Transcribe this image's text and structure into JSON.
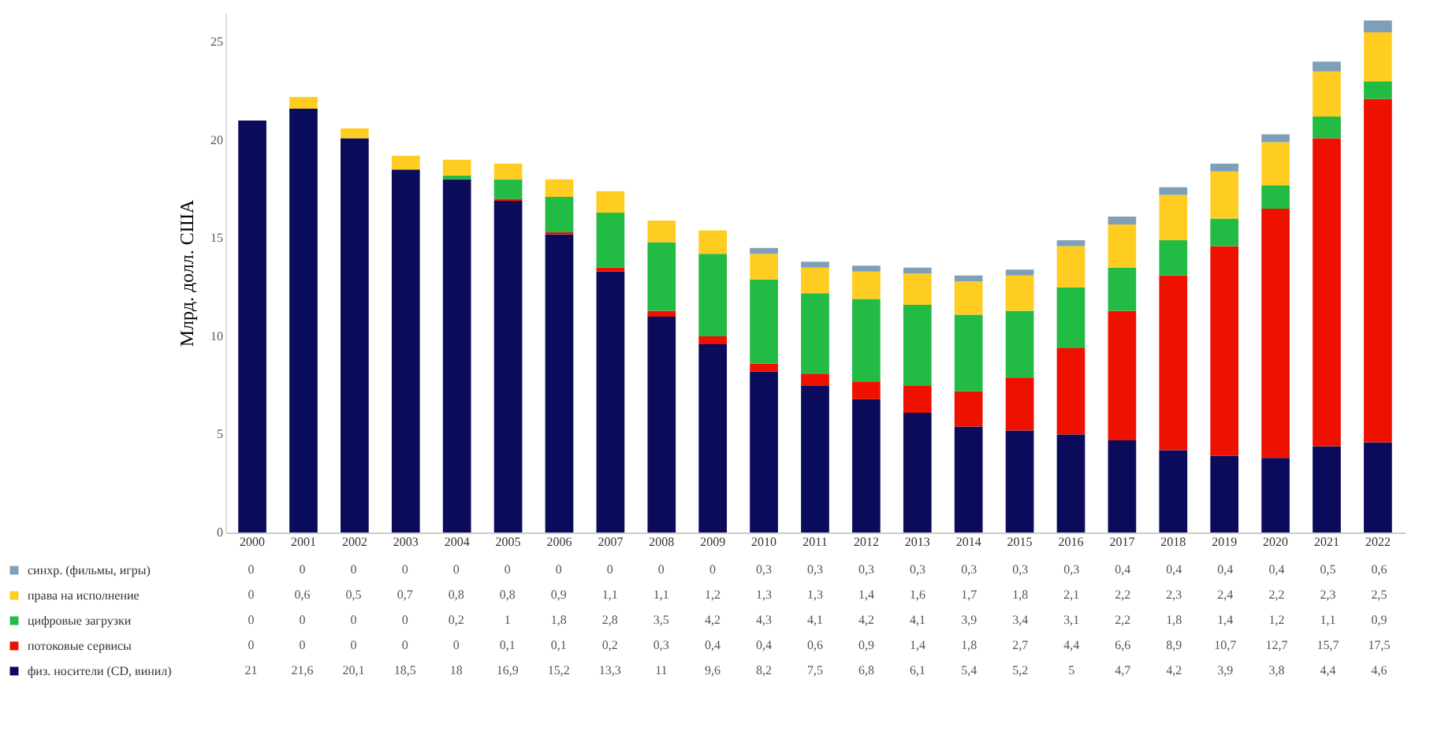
{
  "chart_data": {
    "type": "bar",
    "stacked": true,
    "ylabel": "Млрд. долл. США",
    "categories": [
      "2000",
      "2001",
      "2002",
      "2003",
      "2004",
      "2005",
      "2006",
      "2007",
      "2008",
      "2009",
      "2010",
      "2011",
      "2012",
      "2013",
      "2014",
      "2015",
      "2016",
      "2017",
      "2018",
      "2019",
      "2020",
      "2021",
      "2022"
    ],
    "series": [
      {
        "name": "физ. носители (CD, винил)",
        "color": "#0b0b5c",
        "values": [
          21,
          21.6,
          20.1,
          18.5,
          18,
          16.9,
          15.2,
          13.3,
          11,
          9.6,
          8.2,
          7.5,
          6.8,
          6.1,
          5.4,
          5.2,
          5,
          4.7,
          4.2,
          3.9,
          3.8,
          4.4,
          4.6
        ],
        "value_labels": [
          "21",
          "21,6",
          "20,1",
          "18,5",
          "18",
          "16,9",
          "15,2",
          "13,3",
          "11",
          "9,6",
          "8,2",
          "7,5",
          "6,8",
          "6,1",
          "5,4",
          "5,2",
          "5",
          "4,7",
          "4,2",
          "3,9",
          "3,8",
          "4,4",
          "4,6"
        ]
      },
      {
        "name": "потоковые сервисы",
        "color": "#ee1100",
        "values": [
          0,
          0,
          0,
          0,
          0,
          0.1,
          0.1,
          0.2,
          0.3,
          0.4,
          0.4,
          0.6,
          0.9,
          1.4,
          1.8,
          2.7,
          4.4,
          6.6,
          8.9,
          10.7,
          12.7,
          15.7,
          17.5
        ],
        "value_labels": [
          "0",
          "0",
          "0",
          "0",
          "0",
          "0,1",
          "0,1",
          "0,2",
          "0,3",
          "0,4",
          "0,4",
          "0,6",
          "0,9",
          "1,4",
          "1,8",
          "2,7",
          "4,4",
          "6,6",
          "8,9",
          "10,7",
          "12,7",
          "15,7",
          "17,5"
        ]
      },
      {
        "name": "цифровые загрузки",
        "color": "#22bb44",
        "values": [
          0,
          0,
          0,
          0,
          0.2,
          1,
          1.8,
          2.8,
          3.5,
          4.2,
          4.3,
          4.1,
          4.2,
          4.1,
          3.9,
          3.4,
          3.1,
          2.2,
          1.8,
          1.4,
          1.2,
          1.1,
          0.9
        ],
        "value_labels": [
          "0",
          "0",
          "0",
          "0",
          "0,2",
          "1",
          "1,8",
          "2,8",
          "3,5",
          "4,2",
          "4,3",
          "4,1",
          "4,2",
          "4,1",
          "3,9",
          "3,4",
          "3,1",
          "2,2",
          "1,8",
          "1,4",
          "1,2",
          "1,1",
          "0,9"
        ]
      },
      {
        "name": "права на исполнение",
        "color": "#ffcc22",
        "values": [
          0,
          0.6,
          0.5,
          0.7,
          0.8,
          0.8,
          0.9,
          1.1,
          1.1,
          1.2,
          1.3,
          1.3,
          1.4,
          1.6,
          1.7,
          1.8,
          2.1,
          2.2,
          2.3,
          2.4,
          2.2,
          2.3,
          2.5
        ],
        "value_labels": [
          "0",
          "0,6",
          "0,5",
          "0,7",
          "0,8",
          "0,8",
          "0,9",
          "1,1",
          "1,1",
          "1,2",
          "1,3",
          "1,3",
          "1,4",
          "1,6",
          "1,7",
          "1,8",
          "2,1",
          "2,2",
          "2,3",
          "2,4",
          "2,2",
          "2,3",
          "2,5"
        ]
      },
      {
        "name": "синхр. (фильмы, игры)",
        "color": "#7f9fb8",
        "values": [
          0,
          0,
          0,
          0,
          0,
          0,
          0,
          0,
          0,
          0,
          0.3,
          0.3,
          0.3,
          0.3,
          0.3,
          0.3,
          0.3,
          0.4,
          0.4,
          0.4,
          0.4,
          0.5,
          0.6
        ],
        "value_labels": [
          "0",
          "0",
          "0",
          "0",
          "0",
          "0",
          "0",
          "0",
          "0",
          "0",
          "0,3",
          "0,3",
          "0,3",
          "0,3",
          "0,3",
          "0,3",
          "0,3",
          "0,4",
          "0,4",
          "0,4",
          "0,4",
          "0,5",
          "0,6"
        ]
      }
    ],
    "ylim": [
      0,
      26.5
    ],
    "yticks": [
      0,
      5,
      10,
      15,
      20,
      25
    ],
    "grid": false,
    "legend": "bottom left"
  }
}
